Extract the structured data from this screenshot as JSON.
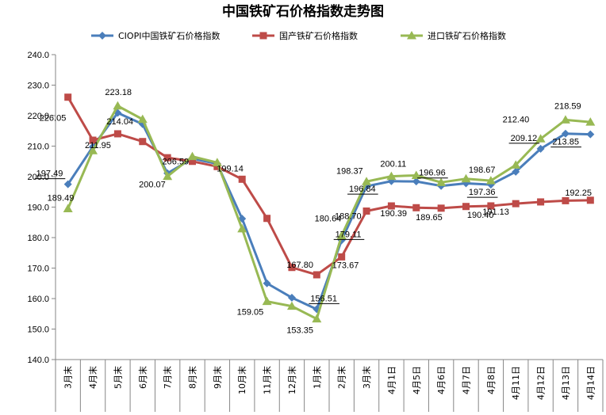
{
  "chart_data": {
    "type": "line",
    "title": "中国铁矿石价格指数走势图",
    "xlabel": "",
    "ylabel": "",
    "ylim": [
      140,
      240
    ],
    "ytick_step": 10,
    "grid": false,
    "legend_position": "top",
    "categories": [
      "3月末",
      "4月末",
      "5月末",
      "6月末",
      "7月末",
      "8月末",
      "9月末",
      "10月末",
      "11月末",
      "12月末",
      "1月末",
      "2月末",
      "3月末",
      "4月1日",
      "4月5日",
      "4月6日",
      "4月7日",
      "4月8日",
      "4月11日",
      "4月12日",
      "4月13日",
      "4月14日"
    ],
    "series": [
      {
        "name": "CIOPI中国铁矿石价格指数",
        "color": "#4a7ebb",
        "marker": "diamond",
        "values": [
          197.49,
          209.8,
          220.9,
          217.2,
          201.1,
          205.9,
          204.2,
          186.2,
          165.0,
          160.3,
          156.51,
          179.11,
          196.84,
          198.5,
          198.4,
          196.96,
          197.8,
          197.36,
          201.6,
          209.12,
          214.1,
          213.85
        ]
      },
      {
        "name": "国产铁矿石价格指数",
        "color": "#be4b48",
        "marker": "square",
        "values": [
          226.05,
          211.95,
          214.04,
          211.5,
          206.2,
          205.0,
          203.3,
          199.14,
          186.3,
          170.2,
          167.8,
          173.67,
          188.7,
          190.39,
          189.8,
          189.65,
          190.2,
          190.4,
          191.13,
          191.7,
          192.1,
          192.25
        ]
      },
      {
        "name": "进口铁矿石价格指数",
        "color": "#98b954",
        "marker": "triangle",
        "values": [
          189.49,
          208.5,
          223.18,
          218.8,
          200.07,
          206.59,
          204.6,
          182.9,
          159.05,
          157.5,
          153.35,
          180.64,
          198.37,
          200.11,
          200.4,
          198.1,
          199.3,
          198.67,
          203.8,
          212.4,
          218.59,
          217.9
        ]
      }
    ],
    "data_labels": [
      {
        "series": 0,
        "index": 0,
        "text": "197.49",
        "underline": true
      },
      {
        "series": 1,
        "index": 0,
        "text": "226.05"
      },
      {
        "series": 2,
        "index": 0,
        "text": "189.49"
      },
      {
        "series": 1,
        "index": 1,
        "text": "211.95"
      },
      {
        "series": 2,
        "index": 2,
        "text": "223.18"
      },
      {
        "series": 1,
        "index": 2,
        "text": "214.04"
      },
      {
        "series": 2,
        "index": 5,
        "text": "206.59"
      },
      {
        "series": 2,
        "index": 4,
        "text": "200.07"
      },
      {
        "series": 1,
        "index": 7,
        "text": "199.14"
      },
      {
        "series": 2,
        "index": 8,
        "text": "159.05"
      },
      {
        "series": 1,
        "index": 10,
        "text": "167.80"
      },
      {
        "series": 0,
        "index": 10,
        "text": "156.51",
        "underline": true
      },
      {
        "series": 2,
        "index": 10,
        "text": "153.35"
      },
      {
        "series": 2,
        "index": 11,
        "text": "180.64"
      },
      {
        "series": 0,
        "index": 11,
        "text": "179.11",
        "underline": true
      },
      {
        "series": 1,
        "index": 11,
        "text": "173.67"
      },
      {
        "series": 2,
        "index": 12,
        "text": "198.37"
      },
      {
        "series": 0,
        "index": 12,
        "text": "196.84",
        "underline": true
      },
      {
        "series": 1,
        "index": 12,
        "text": "188.70"
      },
      {
        "series": 2,
        "index": 13,
        "text": "200.11"
      },
      {
        "series": 1,
        "index": 13,
        "text": "190.39"
      },
      {
        "series": 0,
        "index": 15,
        "text": "196.96",
        "underline": true
      },
      {
        "series": 1,
        "index": 15,
        "text": "189.65"
      },
      {
        "series": 2,
        "index": 17,
        "text": "198.67"
      },
      {
        "series": 0,
        "index": 17,
        "text": "197.36",
        "underline": true
      },
      {
        "series": 1,
        "index": 17,
        "text": "190.40"
      },
      {
        "series": 1,
        "index": 18,
        "text": "191.13"
      },
      {
        "series": 2,
        "index": 19,
        "text": "212.40"
      },
      {
        "series": 0,
        "index": 19,
        "text": "209.12",
        "underline": true
      },
      {
        "series": 2,
        "index": 20,
        "text": "218.59"
      },
      {
        "series": 0,
        "index": 21,
        "text": "213.85",
        "underline": true
      },
      {
        "series": 1,
        "index": 21,
        "text": "192.25"
      }
    ]
  }
}
